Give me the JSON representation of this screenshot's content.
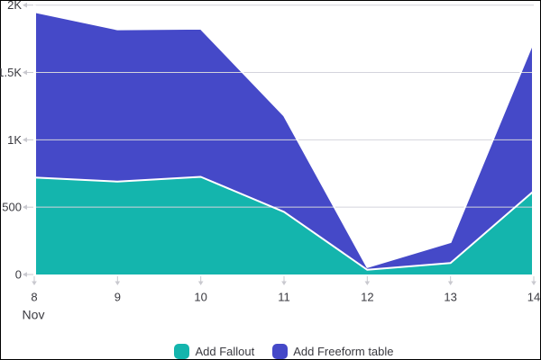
{
  "chart_data": {
    "type": "area",
    "stacked": true,
    "x_tick_labels": [
      "8",
      "9",
      "10",
      "11",
      "12",
      "13",
      "14"
    ],
    "x_axis_annotation": "Nov",
    "y_ticks": [
      {
        "value": 0,
        "label": "0"
      },
      {
        "value": 500,
        "label": "500"
      },
      {
        "value": 1000,
        "label": "1K"
      },
      {
        "value": 1500,
        "label": "1.5K"
      },
      {
        "value": 2000,
        "label": "2K"
      }
    ],
    "ylim": [
      0,
      2000
    ],
    "grid": true,
    "legend_position": "bottom",
    "series": [
      {
        "name": "Add Fallout",
        "color": "#14b5ad",
        "values": [
          720,
          690,
          725,
          465,
          35,
          85,
          620
        ]
      },
      {
        "name": "Add Freeform table",
        "color": "#4549c8",
        "values": [
          1230,
          1130,
          1100,
          715,
          20,
          155,
          1115
        ]
      }
    ],
    "stacked_totals": [
      1950,
      1820,
      1825,
      1180,
      55,
      240,
      1735
    ],
    "colors": {
      "area_stroke": "#ffffff",
      "gridline": "#d4d4dc",
      "tick": "#c9c9cf",
      "label": "#3a3a40",
      "background": "#ffffff",
      "border": "#000000"
    }
  }
}
